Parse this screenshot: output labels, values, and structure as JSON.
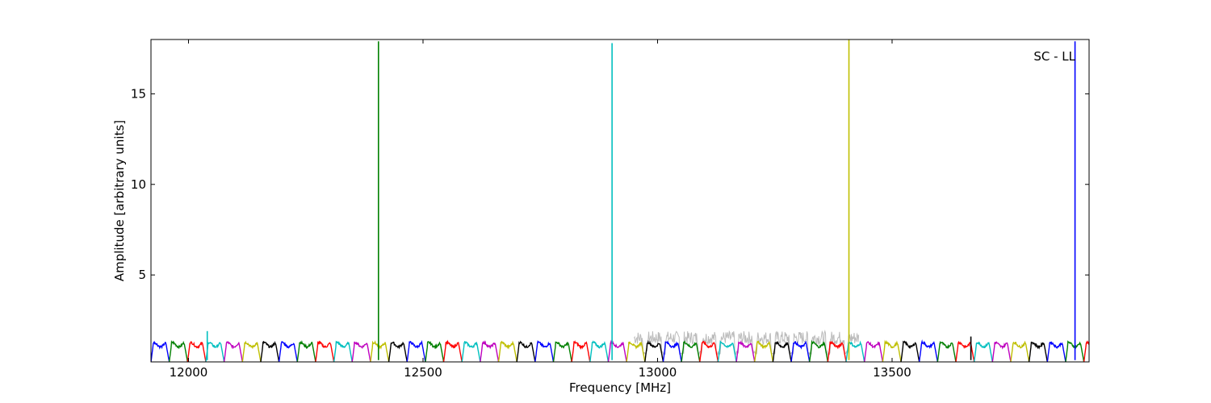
{
  "chart_data": {
    "type": "line",
    "title": "",
    "annotation": "SC - LL",
    "xlabel": "Frequency [MHz]",
    "ylabel": "Amplitude [arbitrary units]",
    "xlim": [
      11920,
      13920
    ],
    "ylim": [
      0.2,
      18
    ],
    "x_ticks": [
      12000,
      12500,
      13000,
      13500
    ],
    "y_ticks": [
      5,
      10,
      15
    ],
    "grid": false,
    "legend": "none",
    "subband_width_mhz": 39,
    "subband_start_mhz": 11920,
    "color_cycle": [
      "#0000ff",
      "#008000",
      "#ff0000",
      "#00bfbf",
      "#bf00bf",
      "#bfbf00",
      "#000000"
    ],
    "background_series": {
      "color": "#bbbbbb",
      "x_range": [
        12950,
        13430
      ],
      "level_max": 1.9
    },
    "spikes": [
      {
        "x": 12405,
        "y": 17.9,
        "color": "#008000"
      },
      {
        "x": 12903,
        "y": 17.8,
        "color": "#00bfbf"
      },
      {
        "x": 13408,
        "y": 18.0,
        "color": "#bfbf00"
      },
      {
        "x": 13890,
        "y": 17.9,
        "color": "#0000ff"
      },
      {
        "x": 12040,
        "y": 1.9,
        "color": "#00bfbf"
      },
      {
        "x": 13668,
        "y": 1.6,
        "color": "#000000"
      }
    ]
  }
}
